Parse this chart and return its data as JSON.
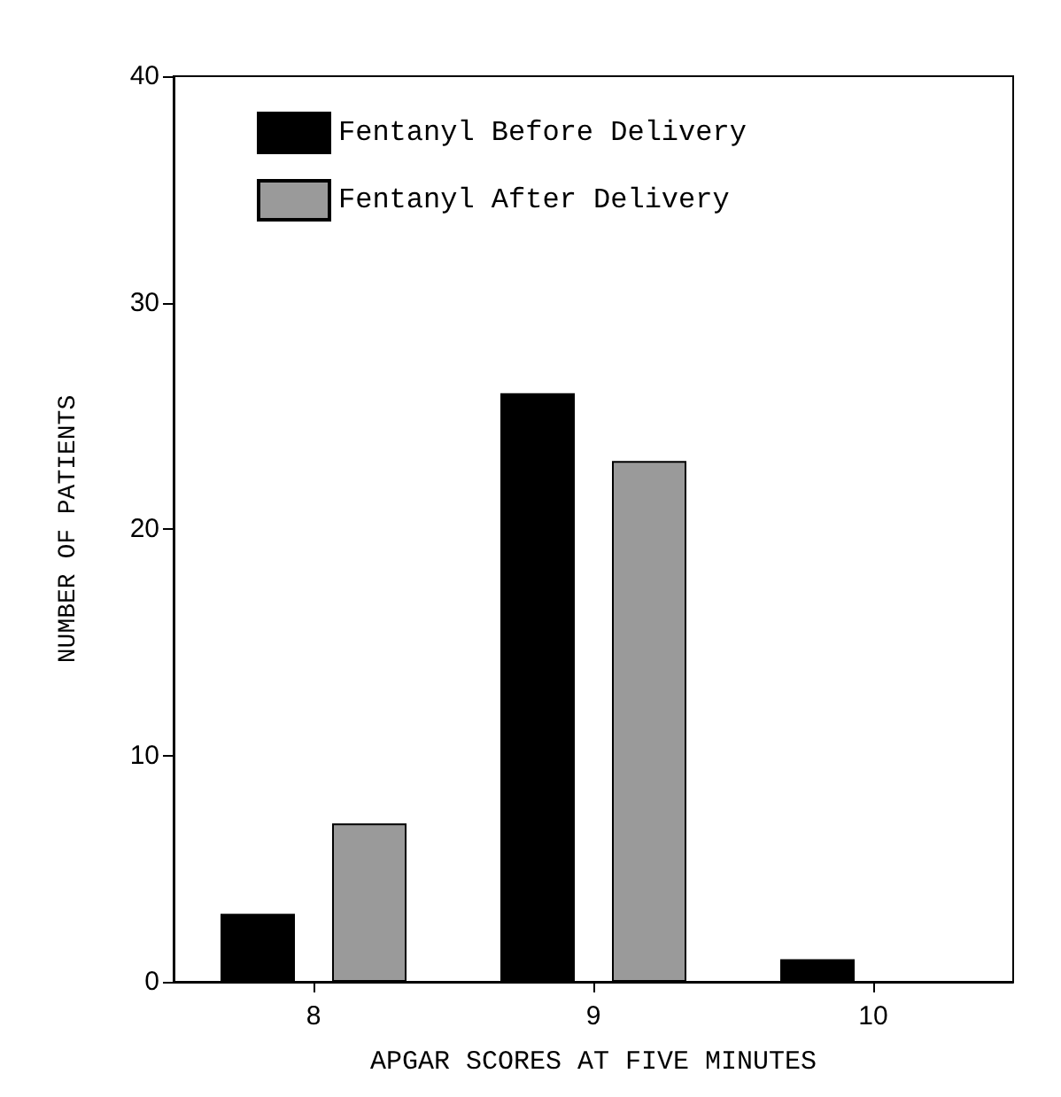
{
  "chart_data": {
    "type": "bar",
    "xlabel": "APGAR SCORES AT FIVE MINUTES",
    "ylabel": "NUMBER OF PATIENTS",
    "categories": [
      "8",
      "9",
      "10"
    ],
    "series": [
      {
        "name": "Fentanyl Before Delivery",
        "color": "#000000",
        "values": [
          3,
          26,
          1
        ]
      },
      {
        "name": "Fentanyl After Delivery",
        "color": "#9a9a9a",
        "values": [
          7,
          23,
          null
        ]
      }
    ],
    "ylim": [
      0,
      40
    ],
    "yticks": [
      0,
      10,
      20,
      30,
      40
    ],
    "grid": false,
    "legend": "top left"
  }
}
